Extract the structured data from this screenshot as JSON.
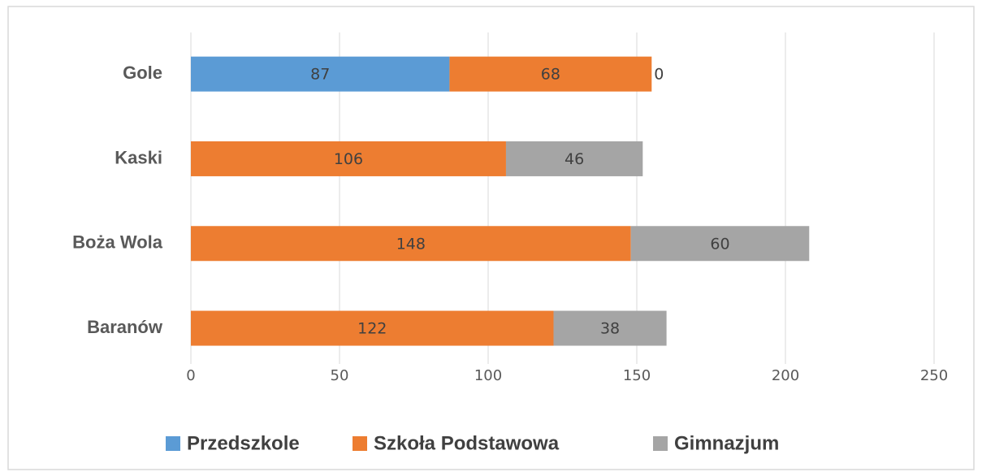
{
  "chart_data": {
    "type": "bar",
    "orientation": "horizontal",
    "stacked": true,
    "categories": [
      "Gole",
      "Kaski",
      "Boża Wola",
      "Baranów"
    ],
    "series": [
      {
        "name": "Przedszkole",
        "color": "#5b9bd5",
        "values": [
          87,
          null,
          null,
          null
        ]
      },
      {
        "name": "Szkoła Podstawowa",
        "color": "#ed7d31",
        "values": [
          68,
          106,
          148,
          122
        ]
      },
      {
        "name": "Gimnazjum",
        "color": "#a5a5a5",
        "values": [
          0,
          46,
          60,
          38
        ]
      }
    ],
    "xlim": [
      0,
      250
    ],
    "xticks": [
      0,
      50,
      100,
      150,
      200,
      250
    ],
    "grid": true,
    "legend": "bottom"
  }
}
